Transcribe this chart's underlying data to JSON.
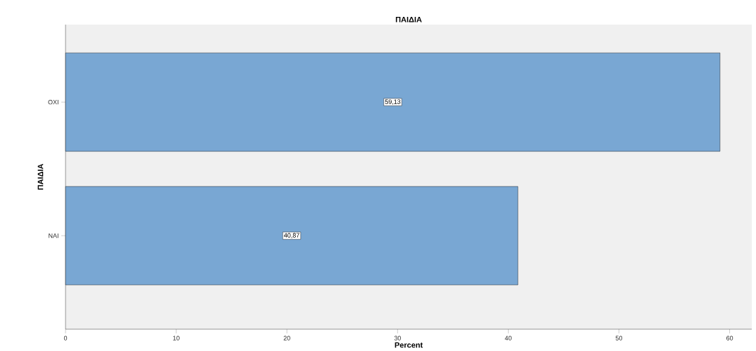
{
  "chart_data": {
    "type": "bar",
    "orientation": "horizontal",
    "title": "ΠΑΙΔΙΑ",
    "xlabel": "Percent",
    "ylabel": "ΠΑΙΔΙΑ",
    "categories": [
      "ΟΧΙ",
      "ΝΑΙ"
    ],
    "values": [
      59.13,
      40.87
    ],
    "value_labels": [
      "59,13",
      "40,87"
    ],
    "color": "#79a7d3",
    "xlim": [
      0,
      62
    ],
    "xticks": [
      0,
      10,
      20,
      30,
      40,
      50,
      60
    ]
  }
}
